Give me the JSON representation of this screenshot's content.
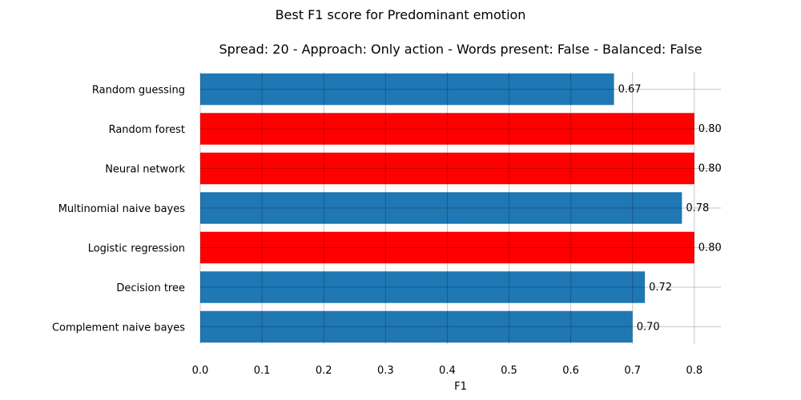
{
  "chart_data": {
    "type": "bar",
    "orientation": "horizontal",
    "suptitle": "Best F1 score for Predominant emotion",
    "title": "Spread: 20 - Approach: Only action - Words present: False - Balanced: False",
    "xlabel": "F1",
    "ylabel": "",
    "xlim": [
      0,
      0.84
    ],
    "xticks": [
      "0.0",
      "0.1",
      "0.2",
      "0.3",
      "0.4",
      "0.5",
      "0.6",
      "0.7",
      "0.8"
    ],
    "grid": true,
    "categories": [
      "Random guessing",
      "Random forest",
      "Neural network",
      "Multinomial naive bayes",
      "Logistic regression",
      "Decision tree",
      "Complement naive bayes"
    ],
    "values": [
      0.67,
      0.8,
      0.8,
      0.78,
      0.8,
      0.72,
      0.7
    ],
    "value_labels": [
      "0.67",
      "0.80",
      "0.80",
      "0.78",
      "0.80",
      "0.72",
      "0.70"
    ],
    "bar_colors": [
      "#1f77b4",
      "#ff0000",
      "#ff0000",
      "#1f77b4",
      "#ff0000",
      "#1f77b4",
      "#1f77b4"
    ]
  }
}
